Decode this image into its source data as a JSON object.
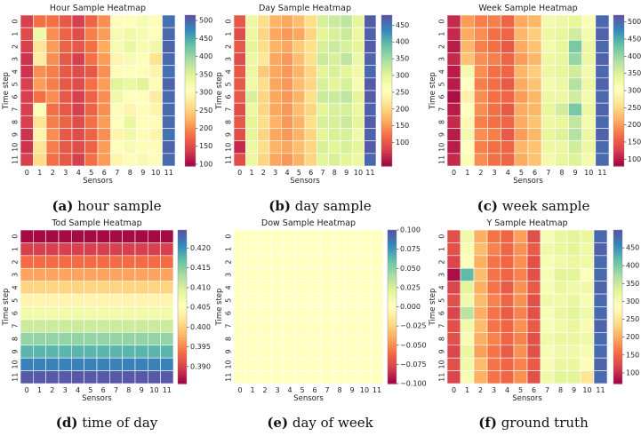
{
  "colorscale": "Spectral",
  "chart_data": [
    {
      "type": "heatmap",
      "title": "Hour Sample Heatmap",
      "xlabel": "Sensors",
      "ylabel": "Time step",
      "x": [
        "0",
        "1",
        "2",
        "3",
        "4",
        "5",
        "6",
        "7",
        "8",
        "9",
        "10",
        "11"
      ],
      "y": [
        "0",
        "1",
        "2",
        "3",
        "4",
        "5",
        "6",
        "7",
        "8",
        "9",
        "10",
        "11"
      ],
      "zlim": [
        95,
        515
      ],
      "colorbar_ticks": [
        "100",
        "150",
        "200",
        "250",
        "300",
        "350",
        "400",
        "450",
        "500"
      ],
      "z": [
        [
          140,
          180,
          180,
          160,
          140,
          170,
          200,
          300,
          310,
          320,
          300,
          490
        ],
        [
          150,
          330,
          200,
          170,
          150,
          190,
          210,
          320,
          330,
          320,
          310,
          495
        ],
        [
          140,
          270,
          210,
          170,
          160,
          180,
          220,
          320,
          340,
          320,
          330,
          500
        ],
        [
          130,
          280,
          200,
          160,
          140,
          180,
          210,
          290,
          320,
          310,
          270,
          495
        ],
        [
          130,
          200,
          190,
          160,
          150,
          160,
          200,
          300,
          310,
          300,
          290,
          490
        ],
        [
          140,
          210,
          190,
          160,
          150,
          180,
          210,
          350,
          340,
          350,
          300,
          500
        ],
        [
          140,
          180,
          200,
          160,
          140,
          170,
          200,
          330,
          310,
          310,
          280,
          495
        ],
        [
          140,
          310,
          180,
          160,
          140,
          170,
          200,
          300,
          290,
          300,
          290,
          495
        ],
        [
          140,
          270,
          190,
          170,
          150,
          180,
          210,
          310,
          340,
          310,
          300,
          495
        ],
        [
          130,
          290,
          200,
          160,
          150,
          170,
          200,
          290,
          330,
          300,
          290,
          490
        ],
        [
          130,
          270,
          190,
          160,
          150,
          170,
          210,
          310,
          320,
          300,
          300,
          500
        ],
        [
          140,
          260,
          180,
          160,
          140,
          180,
          210,
          290,
          300,
          320,
          300,
          495
        ]
      ],
      "caption_letter": "(a)",
      "caption_text": " hour sample"
    },
    {
      "type": "heatmap",
      "title": "Day Sample Heatmap",
      "xlabel": "Sensors",
      "ylabel": "Time step",
      "x": [
        "0",
        "1",
        "2",
        "3",
        "4",
        "5",
        "6",
        "7",
        "8",
        "9",
        "10",
        "11"
      ],
      "y": [
        "0",
        "1",
        "2",
        "3",
        "4",
        "5",
        "6",
        "7",
        "8",
        "9",
        "10",
        "11"
      ],
      "zlim": [
        30,
        480
      ],
      "colorbar_ticks": [
        "100",
        "150",
        "200",
        "250",
        "300",
        "350",
        "400",
        "450"
      ],
      "z": [
        [
          100,
          290,
          210,
          170,
          160,
          180,
          210,
          310,
          320,
          330,
          300,
          470
        ],
        [
          90,
          290,
          200,
          160,
          150,
          160,
          200,
          300,
          310,
          320,
          290,
          465
        ],
        [
          100,
          300,
          210,
          170,
          160,
          190,
          210,
          310,
          320,
          310,
          300,
          470
        ],
        [
          90,
          290,
          220,
          160,
          150,
          180,
          210,
          320,
          310,
          330,
          290,
          465
        ],
        [
          100,
          290,
          190,
          160,
          150,
          170,
          200,
          300,
          310,
          300,
          280,
          460
        ],
        [
          100,
          280,
          210,
          160,
          150,
          180,
          200,
          310,
          300,
          310,
          270,
          470
        ],
        [
          100,
          310,
          200,
          160,
          150,
          170,
          210,
          320,
          320,
          330,
          300,
          470
        ],
        [
          90,
          290,
          200,
          160,
          150,
          180,
          200,
          300,
          310,
          310,
          290,
          465
        ],
        [
          100,
          300,
          210,
          170,
          150,
          170,
          210,
          310,
          310,
          320,
          300,
          470
        ],
        [
          90,
          300,
          200,
          160,
          150,
          170,
          200,
          300,
          310,
          310,
          280,
          465
        ],
        [
          60,
          290,
          210,
          170,
          160,
          180,
          200,
          310,
          300,
          310,
          300,
          470
        ],
        [
          90,
          290,
          200,
          160,
          150,
          170,
          200,
          300,
          310,
          300,
          290,
          460
        ]
      ],
      "caption_letter": "(b)",
      "caption_text": " day sample"
    },
    {
      "type": "heatmap",
      "title": "Week Sample Heatmap",
      "xlabel": "Sensors",
      "ylabel": "Time step",
      "x": [
        "0",
        "1",
        "2",
        "3",
        "4",
        "5",
        "6",
        "7",
        "8",
        "9",
        "10",
        "11"
      ],
      "y": [
        "0",
        "1",
        "2",
        "3",
        "4",
        "5",
        "6",
        "7",
        "8",
        "9",
        "10",
        "11"
      ],
      "zlim": [
        80,
        520
      ],
      "colorbar_ticks": [
        "100",
        "150",
        "200",
        "250",
        "300",
        "350",
        "400",
        "450",
        "500"
      ],
      "z": [
        [
          110,
          200,
          180,
          180,
          160,
          210,
          220,
          320,
          330,
          340,
          310,
          500
        ],
        [
          110,
          210,
          190,
          170,
          160,
          220,
          240,
          330,
          340,
          360,
          320,
          505
        ],
        [
          100,
          220,
          180,
          170,
          150,
          210,
          230,
          320,
          340,
          420,
          330,
          500
        ],
        [
          110,
          230,
          190,
          180,
          160,
          200,
          220,
          330,
          340,
          400,
          330,
          505
        ],
        [
          100,
          320,
          190,
          170,
          160,
          220,
          240,
          330,
          340,
          360,
          320,
          500
        ],
        [
          100,
          300,
          180,
          170,
          150,
          210,
          230,
          320,
          330,
          380,
          330,
          505
        ],
        [
          90,
          280,
          190,
          170,
          160,
          200,
          220,
          330,
          330,
          360,
          320,
          500
        ],
        [
          100,
          300,
          190,
          170,
          150,
          210,
          220,
          340,
          360,
          420,
          330,
          505
        ],
        [
          110,
          290,
          180,
          170,
          160,
          210,
          230,
          330,
          340,
          370,
          320,
          500
        ],
        [
          100,
          320,
          190,
          180,
          150,
          200,
          220,
          340,
          350,
          380,
          330,
          505
        ],
        [
          100,
          300,
          180,
          170,
          160,
          220,
          230,
          330,
          330,
          360,
          330,
          500
        ],
        [
          110,
          310,
          190,
          170,
          160,
          210,
          230,
          320,
          340,
          350,
          320,
          500
        ]
      ],
      "caption_letter": "(c)",
      "caption_text": " week sample"
    },
    {
      "type": "heatmap",
      "title": "Tod Sample Heatmap",
      "xlabel": "Sensors",
      "ylabel": "Time step",
      "x": [
        "0",
        "1",
        "2",
        "3",
        "4",
        "5",
        "6",
        "7",
        "8",
        "9",
        "10",
        "11"
      ],
      "y": [
        "0",
        "1",
        "2",
        "3",
        "4",
        "5",
        "6",
        "7",
        "8",
        "9",
        "10",
        "11"
      ],
      "zlim": [
        0.3857,
        0.4246
      ],
      "colorbar_ticks": [
        "0.390",
        "0.395",
        "0.400",
        "0.405",
        "0.410",
        "0.415",
        "0.420"
      ],
      "row_values": [
        0.3863,
        0.3898,
        0.3933,
        0.3968,
        0.4003,
        0.4038,
        0.4072,
        0.4107,
        0.4142,
        0.4177,
        0.4212,
        0.424
      ],
      "caption_letter": "(d)",
      "caption_text": " time of day"
    },
    {
      "type": "heatmap",
      "title": "Dow Sample Heatmap",
      "xlabel": "Sensors",
      "ylabel": "Time step",
      "x": [
        "0",
        "1",
        "2",
        "3",
        "4",
        "5",
        "6",
        "7",
        "8",
        "9",
        "10",
        "11"
      ],
      "y": [
        "0",
        "1",
        "2",
        "3",
        "4",
        "5",
        "6",
        "7",
        "8",
        "9",
        "10",
        "11"
      ],
      "zlim": [
        -0.1,
        0.1
      ],
      "colorbar_ticks": [
        "0.100",
        "0.075",
        "0.050",
        "0.025",
        "0.000",
        "−0.025",
        "−0.050",
        "−0.075",
        "−0.100"
      ],
      "constant_value": 0,
      "caption_letter": "(e)",
      "caption_text": " day of week"
    },
    {
      "type": "heatmap",
      "title": "Y Sample Heatmap",
      "xlabel": "Sensors",
      "ylabel": "Time step",
      "x": [
        "0",
        "1",
        "2",
        "3",
        "4",
        "5",
        "6",
        "7",
        "8",
        "9",
        "10",
        "11"
      ],
      "y": [
        "0",
        "1",
        "2",
        "3",
        "4",
        "5",
        "6",
        "7",
        "8",
        "9",
        "10",
        "11"
      ],
      "zlim": [
        70,
        500
      ],
      "colorbar_ticks": [
        "100",
        "150",
        "200",
        "250",
        "300",
        "350",
        "400",
        "450"
      ],
      "z": [
        [
          130,
          310,
          200,
          160,
          150,
          190,
          130,
          300,
          320,
          330,
          320,
          480
        ],
        [
          130,
          300,
          210,
          170,
          150,
          180,
          140,
          310,
          320,
          330,
          310,
          485
        ],
        [
          120,
          290,
          200,
          160,
          150,
          180,
          130,
          300,
          310,
          320,
          310,
          480
        ],
        [
          80,
          420,
          210,
          160,
          150,
          170,
          130,
          300,
          330,
          330,
          290,
          480
        ],
        [
          120,
          330,
          200,
          160,
          140,
          180,
          140,
          300,
          320,
          310,
          310,
          485
        ],
        [
          130,
          310,
          210,
          170,
          150,
          180,
          130,
          310,
          310,
          320,
          300,
          480
        ],
        [
          120,
          360,
          200,
          160,
          140,
          170,
          130,
          300,
          320,
          330,
          310,
          480
        ],
        [
          130,
          310,
          210,
          160,
          150,
          180,
          140,
          300,
          310,
          320,
          300,
          485
        ],
        [
          130,
          300,
          200,
          170,
          150,
          170,
          130,
          310,
          320,
          320,
          310,
          480
        ],
        [
          120,
          320,
          190,
          160,
          140,
          180,
          130,
          300,
          310,
          310,
          300,
          480
        ],
        [
          130,
          310,
          210,
          160,
          150,
          170,
          140,
          300,
          320,
          320,
          280,
          485
        ],
        [
          120,
          300,
          200,
          160,
          150,
          180,
          130,
          310,
          330,
          330,
          250,
          480
        ]
      ],
      "caption_letter": "(f)",
      "caption_text": " ground truth"
    }
  ]
}
